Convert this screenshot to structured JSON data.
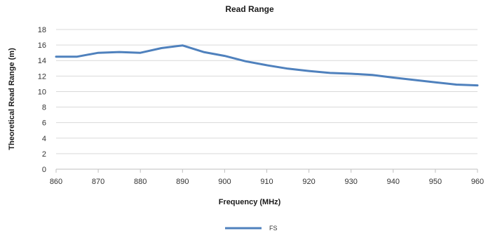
{
  "chart_data": {
    "type": "line",
    "title": "Read Range",
    "xlabel": "Frequency (MHz)",
    "ylabel": "Theoretical Read Range (m)",
    "xlim": [
      860,
      960
    ],
    "ylim": [
      0,
      18
    ],
    "x_ticks": [
      "860",
      "870",
      "880",
      "890",
      "900",
      "910",
      "920",
      "930",
      "940",
      "950",
      "960"
    ],
    "y_ticks": [
      "0",
      "2",
      "4",
      "6",
      "8",
      "10",
      "12",
      "14",
      "16",
      "18"
    ],
    "grid": true,
    "legend_position": "bottom",
    "series": [
      {
        "name": "FS",
        "color": "#4f81bd",
        "x": [
          860,
          865,
          870,
          875,
          880,
          885,
          890,
          895,
          900,
          905,
          910,
          915,
          920,
          925,
          930,
          935,
          940,
          945,
          950,
          955,
          960
        ],
        "y": [
          14.5,
          14.5,
          15.0,
          15.1,
          15.0,
          15.6,
          15.95,
          15.1,
          14.6,
          13.9,
          13.4,
          12.95,
          12.65,
          12.4,
          12.3,
          12.15,
          11.8,
          11.5,
          11.2,
          10.9,
          10.8
        ]
      }
    ]
  }
}
